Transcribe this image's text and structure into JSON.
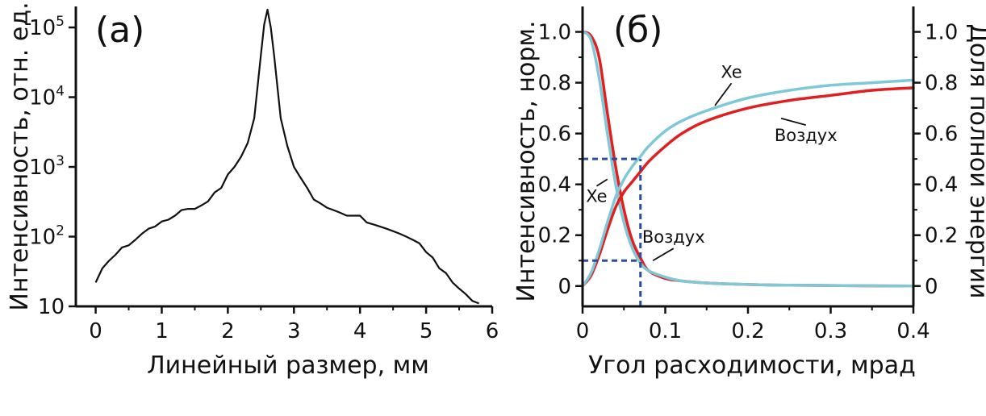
{
  "chart_data": [
    {
      "type": "line",
      "panel_label": "(а)",
      "xlabel": "Линейный размер, мм",
      "ylabel": "Интенсивность, отн. ед.",
      "xlim": [
        -0.3,
        6.0
      ],
      "ylim": [
        10,
        200000
      ],
      "yscale": "log",
      "xticks": [
        0,
        1,
        2,
        3,
        4,
        5,
        6
      ],
      "xtick_labels": [
        "0",
        "1",
        "2",
        "3",
        "4",
        "5",
        "6"
      ],
      "yticks": [
        10,
        100,
        1000,
        10000,
        100000
      ],
      "ytick_bases": [
        "10",
        "10",
        "10",
        "10",
        "10"
      ],
      "ytick_exps": [
        "",
        "2",
        "3",
        "4",
        "5"
      ],
      "grid": false,
      "series": [
        {
          "color": "#111111",
          "x": [
            0,
            0.1,
            0.2,
            0.3,
            0.4,
            0.5,
            0.6,
            0.7,
            0.8,
            0.9,
            1.0,
            1.1,
            1.2,
            1.3,
            1.4,
            1.5,
            1.6,
            1.7,
            1.8,
            1.9,
            2.0,
            2.1,
            2.2,
            2.3,
            2.4,
            2.5,
            2.55,
            2.6,
            2.65,
            2.7,
            2.8,
            2.9,
            3.0,
            3.1,
            3.2,
            3.3,
            3.4,
            3.5,
            3.6,
            3.7,
            3.8,
            3.9,
            4.0,
            4.1,
            4.2,
            4.3,
            4.4,
            4.5,
            4.6,
            4.7,
            4.8,
            4.9,
            5.0,
            5.1,
            5.2,
            5.3,
            5.4,
            5.5,
            5.6,
            5.7,
            5.8
          ],
          "y": [
            22,
            35,
            45,
            55,
            70,
            75,
            90,
            110,
            130,
            140,
            165,
            175,
            200,
            240,
            250,
            250,
            280,
            320,
            430,
            500,
            780,
            1000,
            1400,
            2200,
            5000,
            40000,
            110000,
            180000,
            100000,
            40000,
            5000,
            2000,
            1000,
            700,
            500,
            340,
            300,
            260,
            240,
            220,
            200,
            200,
            200,
            160,
            150,
            140,
            130,
            120,
            110,
            100,
            90,
            80,
            60,
            50,
            35,
            30,
            22,
            18,
            15,
            12,
            11
          ]
        }
      ]
    },
    {
      "type": "line",
      "panel_label": "(б)",
      "xlabel": "Угол расходимости, мрад",
      "ylabel": "Интенсивность, норм.",
      "y2label": "Доля полной энергии",
      "xlim": [
        0,
        0.4
      ],
      "ylim": [
        -0.08,
        1.1
      ],
      "y2lim": [
        -0.08,
        1.1
      ],
      "xticks": [
        0,
        0.1,
        0.2,
        0.3,
        0.4
      ],
      "xtick_labels": [
        "0",
        "0.1",
        "0.2",
        "0.3",
        "0.4"
      ],
      "yticks": [
        0,
        0.2,
        0.4,
        0.6,
        0.8,
        1.0
      ],
      "ytick_labels": [
        "0",
        "0.2",
        "0.4",
        "0.6",
        "0.8",
        "1.0"
      ],
      "y2ticks": [
        0,
        0.2,
        0.4,
        0.6,
        0.8,
        1.0
      ],
      "y2tick_labels": [
        "0",
        "0.2",
        "0.4",
        "0.6",
        "0.8",
        "1.0"
      ],
      "grid": false,
      "series": [
        {
          "name": "Воздух",
          "role": "intensity",
          "color": "#e02020",
          "x": [
            0,
            0.01,
            0.02,
            0.03,
            0.04,
            0.05,
            0.06,
            0.07,
            0.08,
            0.1,
            0.12,
            0.15,
            0.2,
            0.25,
            0.3,
            0.35,
            0.4
          ],
          "y": [
            1.0,
            0.985,
            0.9,
            0.68,
            0.47,
            0.3,
            0.18,
            0.11,
            0.06,
            0.03,
            0.02,
            0.012,
            0.006,
            0.003,
            0.002,
            0.001,
            0.0
          ]
        },
        {
          "name": "Xe",
          "role": "intensity",
          "color": "#7ec8d8",
          "x": [
            0,
            0.01,
            0.02,
            0.03,
            0.04,
            0.05,
            0.06,
            0.07,
            0.08,
            0.1,
            0.12,
            0.15,
            0.2,
            0.25,
            0.3,
            0.35,
            0.4
          ],
          "y": [
            1.0,
            0.97,
            0.82,
            0.6,
            0.4,
            0.25,
            0.15,
            0.09,
            0.06,
            0.035,
            0.02,
            0.012,
            0.006,
            0.003,
            0.002,
            0.001,
            0.0
          ]
        },
        {
          "name": "Воздух",
          "role": "energy",
          "color": "#e02020",
          "x": [
            0,
            0.01,
            0.02,
            0.03,
            0.04,
            0.05,
            0.06,
            0.07,
            0.08,
            0.1,
            0.12,
            0.15,
            0.2,
            0.25,
            0.3,
            0.35,
            0.4
          ],
          "y": [
            0,
            0.04,
            0.12,
            0.22,
            0.31,
            0.37,
            0.41,
            0.45,
            0.49,
            0.55,
            0.6,
            0.65,
            0.7,
            0.73,
            0.75,
            0.77,
            0.78
          ]
        },
        {
          "name": "Xe",
          "role": "energy",
          "color": "#7ec8d8",
          "x": [
            0,
            0.01,
            0.02,
            0.03,
            0.04,
            0.05,
            0.06,
            0.07,
            0.08,
            0.1,
            0.12,
            0.15,
            0.2,
            0.25,
            0.3,
            0.35,
            0.4
          ],
          "y": [
            0,
            0.05,
            0.14,
            0.25,
            0.35,
            0.42,
            0.47,
            0.51,
            0.55,
            0.61,
            0.65,
            0.69,
            0.74,
            0.77,
            0.79,
            0.8,
            0.81
          ]
        }
      ],
      "reference_lines": [
        {
          "points": [
            [
              0,
              0.5
            ],
            [
              0.07,
              0.5
            ]
          ]
        },
        {
          "points": [
            [
              0,
              0.1
            ],
            [
              0.07,
              0.1
            ]
          ]
        },
        {
          "points": [
            [
              0.07,
              -0.08
            ],
            [
              0.07,
              0.5
            ]
          ]
        }
      ],
      "annotations": [
        {
          "text": "Xe",
          "x": 0.18,
          "y": 0.82,
          "arrow_to": [
            0.16,
            0.71
          ]
        },
        {
          "text": "Воздух",
          "x": 0.27,
          "y": 0.57,
          "arrow_to": [
            0.24,
            0.66
          ]
        },
        {
          "text": "Xe",
          "x": 0.017,
          "y": 0.33,
          "arrow_to": [
            0.03,
            0.42
          ]
        },
        {
          "text": "Воздух",
          "x": 0.11,
          "y": 0.17,
          "arrow_to": [
            0.085,
            0.1
          ]
        }
      ]
    }
  ]
}
